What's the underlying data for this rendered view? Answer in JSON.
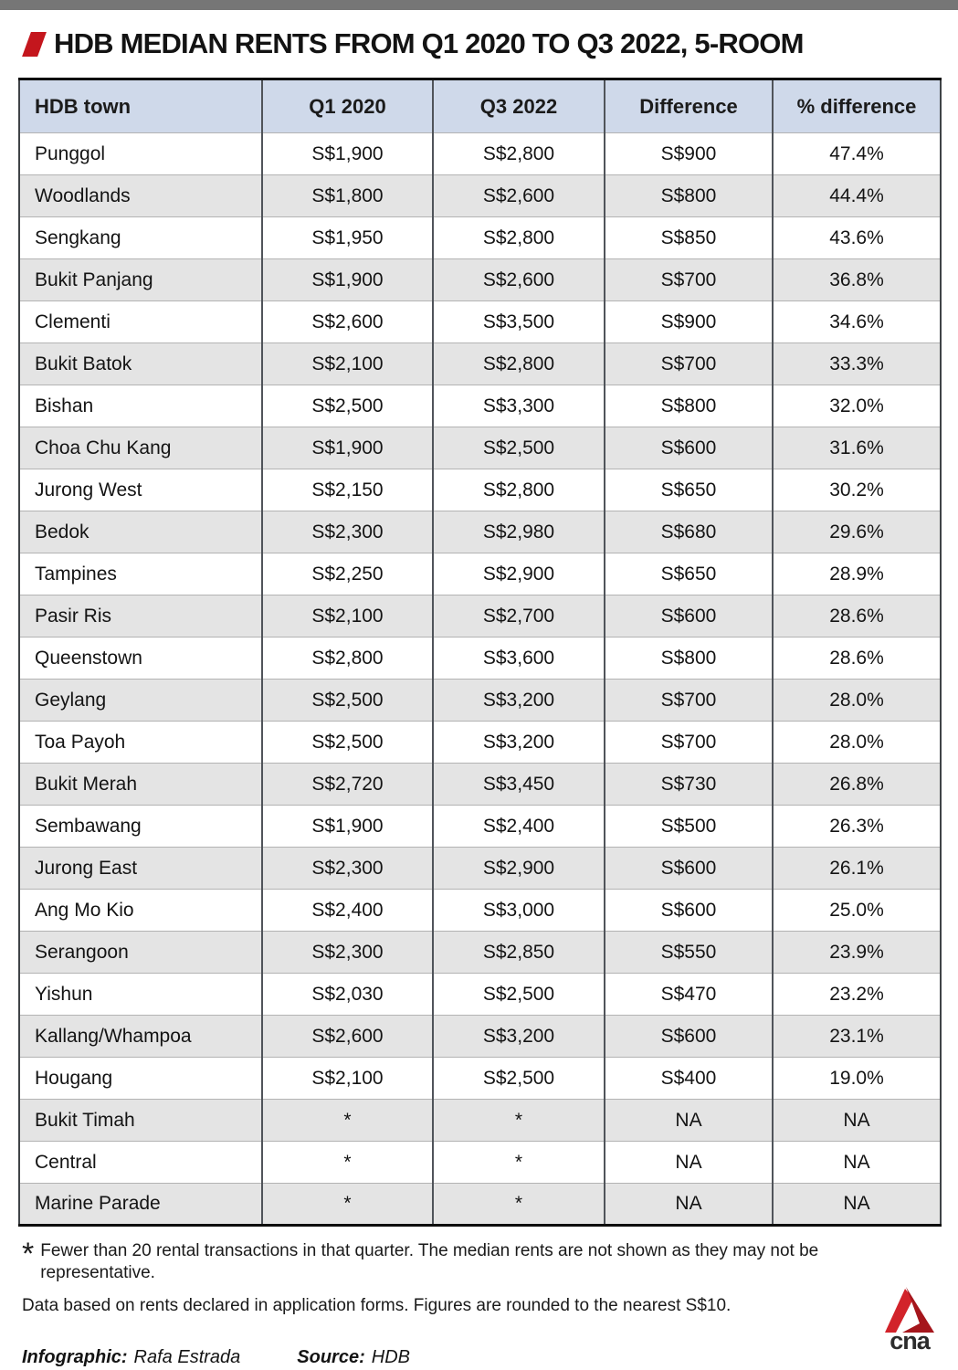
{
  "title": "HDB MEDIAN RENTS FROM Q1 2020 TO Q3 2022, 5-ROOM",
  "chart_data": {
    "type": "table",
    "columns": [
      "HDB town",
      "Q1 2020",
      "Q3 2022",
      "Difference",
      "% difference"
    ],
    "rows": [
      [
        "Punggol",
        "S$1,900",
        "S$2,800",
        "S$900",
        "47.4%"
      ],
      [
        "Woodlands",
        "S$1,800",
        "S$2,600",
        "S$800",
        "44.4%"
      ],
      [
        "Sengkang",
        "S$1,950",
        "S$2,800",
        "S$850",
        "43.6%"
      ],
      [
        "Bukit Panjang",
        "S$1,900",
        "S$2,600",
        "S$700",
        "36.8%"
      ],
      [
        "Clementi",
        "S$2,600",
        "S$3,500",
        "S$900",
        "34.6%"
      ],
      [
        "Bukit Batok",
        "S$2,100",
        "S$2,800",
        "S$700",
        "33.3%"
      ],
      [
        "Bishan",
        "S$2,500",
        "S$3,300",
        "S$800",
        "32.0%"
      ],
      [
        "Choa Chu Kang",
        "S$1,900",
        "S$2,500",
        "S$600",
        "31.6%"
      ],
      [
        "Jurong West",
        "S$2,150",
        "S$2,800",
        "S$650",
        "30.2%"
      ],
      [
        "Bedok",
        "S$2,300",
        "S$2,980",
        "S$680",
        "29.6%"
      ],
      [
        "Tampines",
        "S$2,250",
        "S$2,900",
        "S$650",
        "28.9%"
      ],
      [
        "Pasir Ris",
        "S$2,100",
        "S$2,700",
        "S$600",
        "28.6%"
      ],
      [
        "Queenstown",
        "S$2,800",
        "S$3,600",
        "S$800",
        "28.6%"
      ],
      [
        "Geylang",
        "S$2,500",
        "S$3,200",
        "S$700",
        "28.0%"
      ],
      [
        "Toa Payoh",
        "S$2,500",
        "S$3,200",
        "S$700",
        "28.0%"
      ],
      [
        "Bukit Merah",
        "S$2,720",
        "S$3,450",
        "S$730",
        "26.8%"
      ],
      [
        "Sembawang",
        "S$1,900",
        "S$2,400",
        "S$500",
        "26.3%"
      ],
      [
        "Jurong East",
        "S$2,300",
        "S$2,900",
        "S$600",
        "26.1%"
      ],
      [
        "Ang Mo Kio",
        "S$2,400",
        "S$3,000",
        "S$600",
        "25.0%"
      ],
      [
        "Serangoon",
        "S$2,300",
        "S$2,850",
        "S$550",
        "23.9%"
      ],
      [
        "Yishun",
        "S$2,030",
        "S$2,500",
        "S$470",
        "23.2%"
      ],
      [
        "Kallang/Whampoa",
        "S$2,600",
        "S$3,200",
        "S$600",
        "23.1%"
      ],
      [
        "Hougang",
        "S$2,100",
        "S$2,500",
        "S$400",
        "19.0%"
      ],
      [
        "Bukit Timah",
        "*",
        "*",
        "NA",
        "NA"
      ],
      [
        "Central",
        "*",
        "*",
        "NA",
        "NA"
      ],
      [
        "Marine Parade",
        "*",
        "*",
        "NA",
        "NA"
      ]
    ],
    "title": "HDB MEDIAN RENTS FROM Q1 2020 TO Q3 2022, 5-ROOM",
    "legend_position": "none",
    "grid": "table-borders"
  },
  "notes": {
    "asterisk_symbol": "*",
    "asterisk_note": "Fewer than 20 rental transactions in that quarter. The median rents are not shown as they may not be representative.",
    "data_note": "Data based on rents declared in application forms. Figures are rounded to the nearest S$10."
  },
  "credits": {
    "infographic_label": "Infographic:",
    "infographic_name": "Rafa Estrada",
    "source_label": "Source:",
    "source_name": "HDB"
  },
  "logo": {
    "wordmark": "cna"
  },
  "colors": {
    "accent_red": "#c4161d",
    "logo_red_light": "#d2232a",
    "logo_red_dark": "#a5161c",
    "header_bg": "#cfd9ea",
    "row_alt_bg": "#e4e4e4",
    "top_bar_gray": "#767676"
  }
}
